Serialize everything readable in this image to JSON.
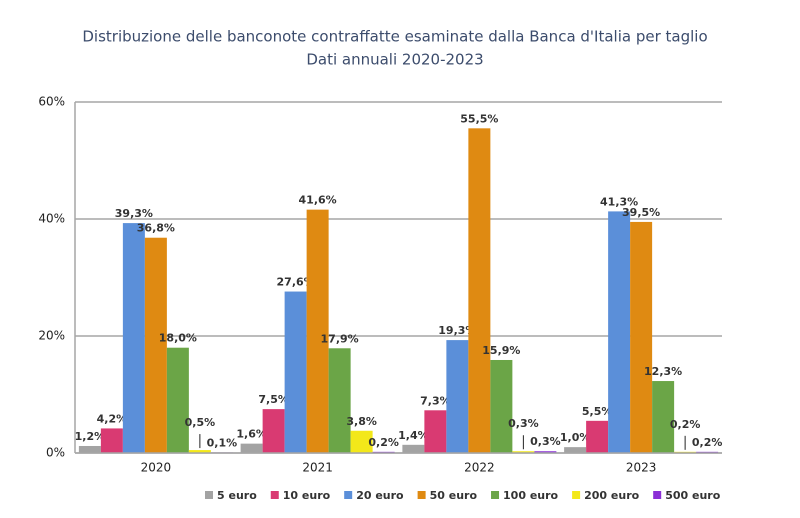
{
  "chart_data": {
    "type": "bar",
    "title": "Distribuzione delle banconote contraffatte esaminate dalla Banca d'Italia per taglio",
    "subtitle": "Dati annuali 2020-2023",
    "categories": [
      "2020",
      "2021",
      "2022",
      "2023"
    ],
    "series": [
      {
        "name": "5 euro",
        "color": "#a3a3a3",
        "values": [
          1.2,
          1.6,
          1.4,
          1.0
        ],
        "value_labels": [
          "1,2%",
          "1,6%",
          "1,4%",
          "1,0%"
        ]
      },
      {
        "name": "10 euro",
        "color": "#d93a72",
        "values": [
          4.2,
          7.5,
          7.3,
          5.5
        ],
        "value_labels": [
          "4,2%",
          "7,5%",
          "7,3%",
          "5,5%"
        ]
      },
      {
        "name": "20 euro",
        "color": "#5b8fd9",
        "values": [
          39.3,
          27.6,
          19.3,
          41.3
        ],
        "value_labels": [
          "39,3%",
          "27,6%",
          "19,3%",
          "41,3%"
        ]
      },
      {
        "name": "50 euro",
        "color": "#df8a12",
        "values": [
          36.8,
          41.6,
          55.5,
          39.5
        ],
        "value_labels": [
          "36,8%",
          "41,6%",
          "55,5%",
          "39,5%"
        ]
      },
      {
        "name": "100 euro",
        "color": "#6ba547",
        "values": [
          18.0,
          17.9,
          15.9,
          12.3
        ],
        "value_labels": [
          "18,0%",
          "17,9%",
          "15,9%",
          "12,3%"
        ]
      },
      {
        "name": "200 euro",
        "color": "#f3e81a",
        "values": [
          0.5,
          3.8,
          0.3,
          0.2
        ],
        "value_labels": [
          "0,5%",
          "3,8%",
          "0,3%",
          "0,2%"
        ]
      },
      {
        "name": "500 euro",
        "color": "#8b2fd6",
        "values": [
          0.1,
          0.2,
          0.3,
          0.2
        ],
        "value_labels": [
          "0,1%",
          "0,2%",
          "0,3%",
          "0,2%"
        ]
      }
    ],
    "ylim": [
      0,
      60
    ],
    "yticks": [
      {
        "value": 0,
        "label": "0%"
      },
      {
        "value": 20,
        "label": "20%"
      },
      {
        "value": 40,
        "label": "40%"
      },
      {
        "value": 60,
        "label": "60%"
      }
    ],
    "grid": true
  }
}
